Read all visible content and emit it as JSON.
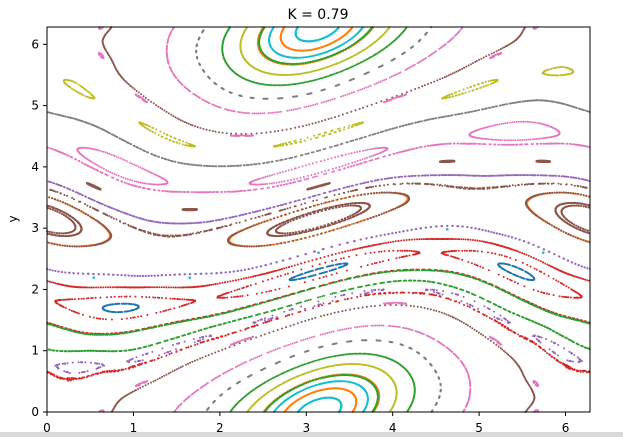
{
  "chart_data": {
    "type": "scatter",
    "title": "K = 0.79",
    "xlabel": "",
    "ylabel": "y",
    "xlim": [
      0,
      6.283
    ],
    "ylim": [
      0,
      6.283
    ],
    "xticks": [
      0,
      1,
      2,
      3,
      4,
      5,
      6
    ],
    "yticks": [
      0,
      1,
      2,
      3,
      4,
      5,
      6
    ],
    "grid": false,
    "legend": "none",
    "K": 0.79,
    "colors": [
      "#17becf",
      "#ff7f0e",
      "#bcbd22",
      "#2ca02c",
      "#7f7f7f",
      "#e377c2",
      "#8c564b",
      "#9467bd",
      "#d62728",
      "#1f77b4"
    ],
    "orbit_initial_conditions": [
      {
        "x": 3.1416,
        "y": 0.45,
        "color": "#17becf"
      },
      {
        "x": 3.1416,
        "y": 0.55,
        "color": "#ff7f0e"
      },
      {
        "x": 3.1416,
        "y": 0.7,
        "color": "#bcbd22"
      },
      {
        "x": 3.1416,
        "y": 0.85,
        "color": "#2ca02c"
      },
      {
        "x": 3.1416,
        "y": 1.05,
        "color": "#7f7f7f"
      },
      {
        "x": 3.1416,
        "y": 1.25,
        "color": "#e377c2"
      },
      {
        "x": 3.1416,
        "y": 1.55,
        "color": "#8c564b"
      },
      {
        "x": 3.1416,
        "y": 1.75,
        "color": "#9467bd"
      },
      {
        "x": 3.1416,
        "y": 2.05,
        "color": "#d62728"
      },
      {
        "x": 3.1416,
        "y": 2.25,
        "color": "#1f77b4"
      },
      {
        "x": 3.1416,
        "y": 2.6,
        "color": "#17becf"
      },
      {
        "x": 3.1416,
        "y": 2.9,
        "color": "#ff7f0e"
      },
      {
        "x": 0.3,
        "y": 2.95,
        "color": "#8c564b"
      },
      {
        "x": 0.4,
        "y": 3.0,
        "color": "#8c564b"
      },
      {
        "x": 0.6,
        "y": 3.1,
        "color": "#8c564b"
      },
      {
        "x": 0.8,
        "y": 3.3,
        "color": "#9467bd"
      },
      {
        "x": 0.5,
        "y": 3.7,
        "color": "#8c564b"
      },
      {
        "x": 0.5,
        "y": 4.0,
        "color": "#e377c2"
      },
      {
        "x": 0.5,
        "y": 4.3,
        "color": "#e377c2"
      },
      {
        "x": 0.5,
        "y": 4.7,
        "color": "#7f7f7f"
      },
      {
        "x": 0.5,
        "y": 5.2,
        "color": "#bcbd22"
      },
      {
        "x": 0.1,
        "y": 0.6,
        "color": "#d62728"
      },
      {
        "x": 0.1,
        "y": 1.0,
        "color": "#2ca02c"
      },
      {
        "x": 0.1,
        "y": 1.4,
        "color": "#2ca02c"
      },
      {
        "x": 0.1,
        "y": 1.8,
        "color": "#d62728"
      },
      {
        "x": 0.1,
        "y": 2.1,
        "color": "#d62728"
      },
      {
        "x": 0.1,
        "y": 2.3,
        "color": "#9467bd"
      },
      {
        "x": 3.7,
        "y": 3.4,
        "color": "#8c564b"
      },
      {
        "x": 3.5,
        "y": 3.6,
        "color": "#8c564b"
      },
      {
        "x": 4.0,
        "y": 5.1,
        "color": "#e377c2"
      },
      {
        "x": 3.0,
        "y": 5.7,
        "color": "#2ca02c"
      },
      {
        "x": 3.0,
        "y": 5.9,
        "color": "#ff7f0e"
      },
      {
        "x": 3.0,
        "y": 6.05,
        "color": "#17becf"
      }
    ],
    "iterations_per_orbit": 420
  }
}
